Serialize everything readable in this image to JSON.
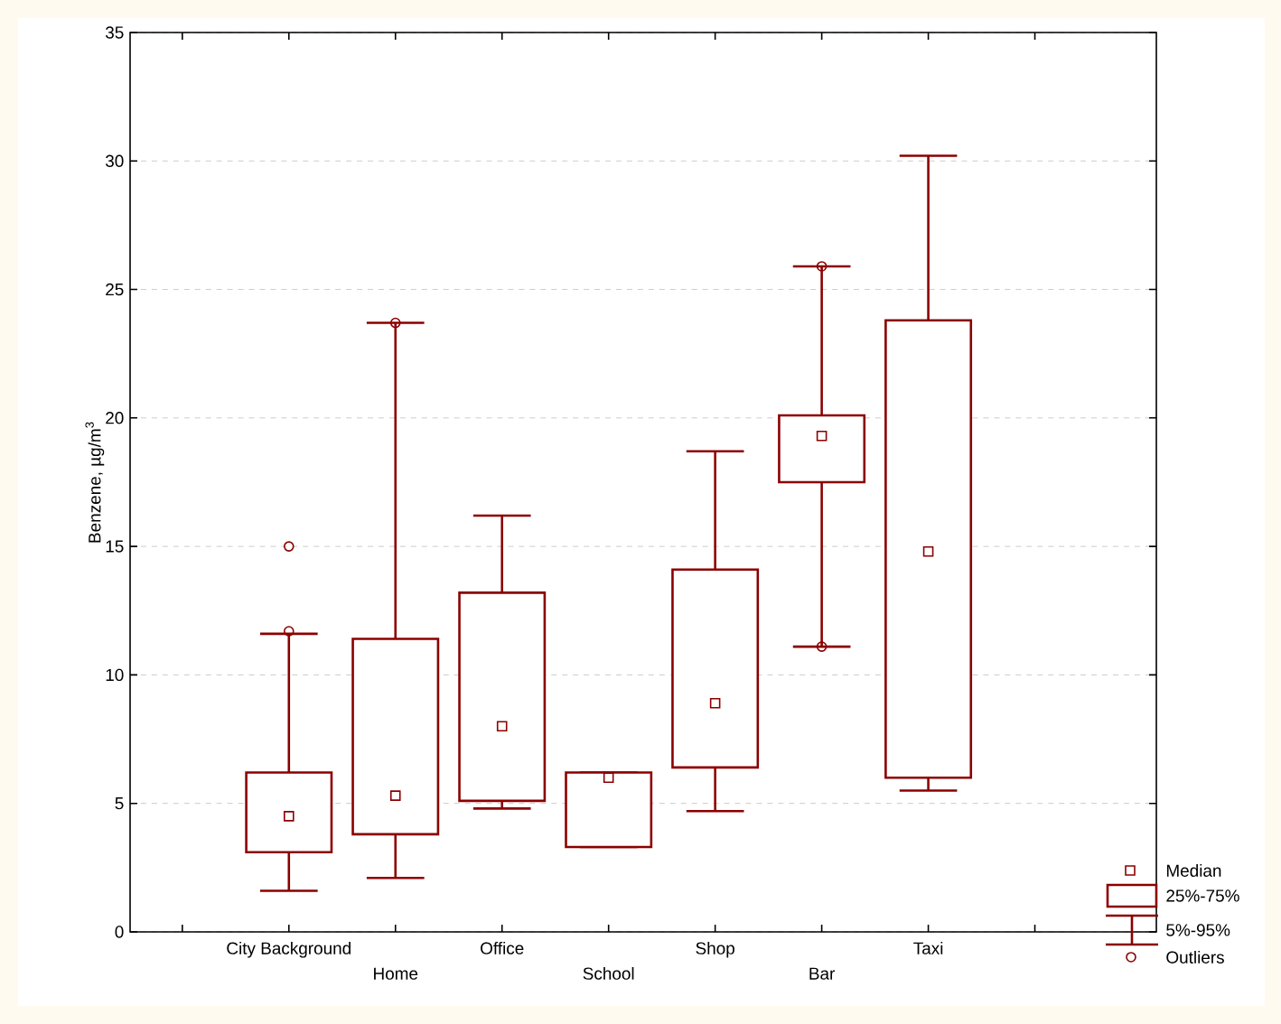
{
  "chart_data": {
    "type": "box",
    "ylabel": "Benzene, µg/m$^{3}$",
    "categories": [
      "City Background",
      "Home",
      "Office",
      "School",
      "Shop",
      "Bar",
      "Taxi"
    ],
    "boxes": [
      {
        "low": 1.6,
        "q1": 3.1,
        "median": 4.5,
        "q3": 6.2,
        "high": 11.6,
        "outliers": [
          11.7,
          15.0
        ]
      },
      {
        "low": 2.1,
        "q1": 3.8,
        "median": 5.3,
        "q3": 11.4,
        "high": 23.7,
        "outliers": [
          23.7
        ]
      },
      {
        "low": 4.8,
        "q1": 5.1,
        "median": 8.0,
        "q3": 13.2,
        "high": 16.2
      },
      {
        "low": 3.3,
        "q1": 3.3,
        "median": 6.0,
        "q3": 6.2,
        "high": 6.2
      },
      {
        "low": 4.7,
        "q1": 6.4,
        "median": 8.9,
        "q3": 14.1,
        "high": 18.7
      },
      {
        "low": 11.1,
        "q1": 17.5,
        "median": 19.3,
        "q3": 20.1,
        "high": 25.9,
        "outliers": [
          25.9,
          11.1
        ]
      },
      {
        "low": 5.5,
        "q1": 6.0,
        "median": 14.8,
        "q3": 23.8,
        "high": 30.2
      }
    ],
    "color": "#8b0000",
    "ylim": [
      0,
      35
    ],
    "yticks": [
      0,
      5,
      10,
      15,
      20,
      25,
      30,
      35
    ],
    "grid": "y",
    "marker": "square",
    "annotations": [
      "Median",
      "25%-75%",
      "5%-95%",
      "Outliers"
    ]
  }
}
